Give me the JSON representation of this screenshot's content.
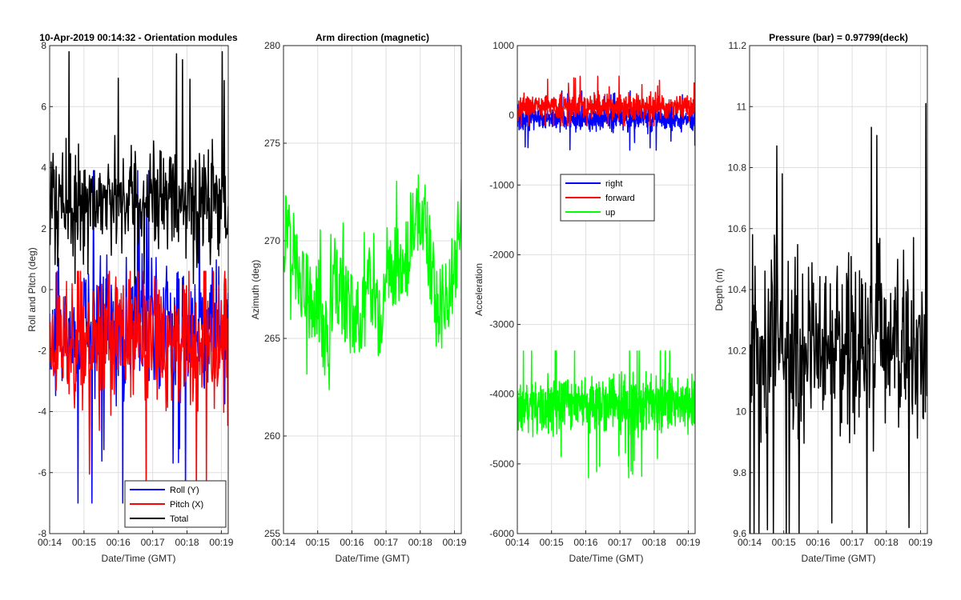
{
  "colors": {
    "roll": "#0000ff",
    "pitch": "#ff0000",
    "total": "#000000",
    "right": "#0000ff",
    "forward": "#ff0000",
    "up": "#00ff00",
    "azimuth": "#00ff00",
    "depth": "#000000",
    "grid": "#dfdfdf",
    "axes": "#262626"
  },
  "chart_data": [
    {
      "type": "line",
      "title": "10-Apr-2019 00:14:32 - Orientation modules",
      "xlabel": "Date/Time (GMT)",
      "ylabel": "Roll and Pitch (deg)",
      "xlim": [
        "00:14:00",
        "00:19:12"
      ],
      "ylim": [
        -8,
        8
      ],
      "xticks": [
        "00:14",
        "00:15",
        "00:16",
        "00:17",
        "00:18",
        "00:19"
      ],
      "yticks": [
        "-8",
        "-6",
        "-4",
        "-2",
        "0",
        "2",
        "4",
        "6",
        "8"
      ],
      "grid": true,
      "legend": "bottom-right",
      "series": [
        {
          "name": "Roll (Y)",
          "color_key": "roll",
          "range": [
            -7.0,
            3.9
          ],
          "mean": -1.3
        },
        {
          "name": "Pitch (X)",
          "color_key": "pitch",
          "range": [
            -7.6,
            0.6
          ],
          "mean": -1.7
        },
        {
          "name": "Total",
          "color_key": "total",
          "range": [
            0.2,
            7.8
          ],
          "mean": 2.9
        }
      ]
    },
    {
      "type": "line",
      "title": "Arm direction (magnetic)",
      "xlabel": "Date/Time (GMT)",
      "ylabel": "Azimuth (deg)",
      "xlim": [
        "00:14:00",
        "00:19:12"
      ],
      "ylim": [
        255,
        280
      ],
      "xticks": [
        "00:14",
        "00:15",
        "00:16",
        "00:17",
        "00:18",
        "00:19"
      ],
      "yticks": [
        "255",
        "260",
        "265",
        "270",
        "275",
        "280"
      ],
      "grid": true,
      "series": [
        {
          "name": "",
          "color_key": "azimuth",
          "points": [
            [
              "00:14:00",
              270.2
            ],
            [
              "00:14:10",
              271.6
            ],
            [
              "00:14:20",
              269.0
            ],
            [
              "00:14:30",
              268.2
            ],
            [
              "00:14:40",
              267.5
            ],
            [
              "00:14:50",
              266.0
            ],
            [
              "00:15:00",
              267.2
            ],
            [
              "00:15:10",
              265.3
            ],
            [
              "00:15:20",
              264.8
            ],
            [
              "00:15:30",
              268.4
            ],
            [
              "00:15:40",
              266.9
            ],
            [
              "00:15:50",
              267.0
            ],
            [
              "00:16:00",
              266.1
            ],
            [
              "00:16:10",
              266.4
            ],
            [
              "00:16:20",
              266.0
            ],
            [
              "00:16:30",
              267.6
            ],
            [
              "00:16:40",
              266.4
            ],
            [
              "00:16:50",
              265.3
            ],
            [
              "00:17:00",
              269.5
            ],
            [
              "00:17:10",
              268.2
            ],
            [
              "00:17:20",
              268.7
            ],
            [
              "00:17:30",
              267.6
            ],
            [
              "00:17:40",
              270.1
            ],
            [
              "00:17:50",
              271.2
            ],
            [
              "00:18:00",
              271.4
            ],
            [
              "00:18:10",
              270.8
            ],
            [
              "00:18:20",
              268.4
            ],
            [
              "00:18:30",
              266.3
            ],
            [
              "00:18:40",
              266.8
            ],
            [
              "00:18:50",
              267.7
            ],
            [
              "00:19:00",
              268.6
            ],
            [
              "00:19:12",
              271.8
            ]
          ]
        }
      ]
    },
    {
      "type": "line",
      "title": "",
      "xlabel": "Date/Time (GMT)",
      "ylabel": "Acceleration",
      "xlim": [
        "00:14:00",
        "00:19:12"
      ],
      "ylim": [
        -6000,
        1000
      ],
      "xticks": [
        "00:14",
        "00:15",
        "00:16",
        "00:17",
        "00:18",
        "00:19"
      ],
      "yticks": [
        "-6000",
        "-5000",
        "-4000",
        "-3000",
        "-2000",
        "-1000",
        "0",
        "1000"
      ],
      "grid": true,
      "legend": "center",
      "series": [
        {
          "name": "right",
          "color_key": "right",
          "range": [
            -500,
            350
          ],
          "mean": -50
        },
        {
          "name": "forward",
          "color_key": "forward",
          "range": [
            -150,
            560
          ],
          "mean": 120
        },
        {
          "name": "up",
          "color_key": "up",
          "range": [
            -5200,
            -3380
          ],
          "mean": -4150
        }
      ]
    },
    {
      "type": "line",
      "title": "Pressure (bar) = 0.97799(deck)",
      "xlabel": "Date/Time (GMT)",
      "ylabel": "Depth (m)",
      "xlim": [
        "00:14:00",
        "00:19:12"
      ],
      "ylim": [
        9.6,
        11.2
      ],
      "xticks": [
        "00:14",
        "00:15",
        "00:16",
        "00:17",
        "00:18",
        "00:19"
      ],
      "yticks": [
        "9.6",
        "9.8",
        "10",
        "10.2",
        "10.4",
        "10.6",
        "10.8",
        "11",
        "11.2"
      ],
      "grid": true,
      "series": [
        {
          "name": "",
          "color_key": "depth",
          "range": [
            9.6,
            11.01
          ],
          "mean": 10.22
        }
      ]
    }
  ]
}
